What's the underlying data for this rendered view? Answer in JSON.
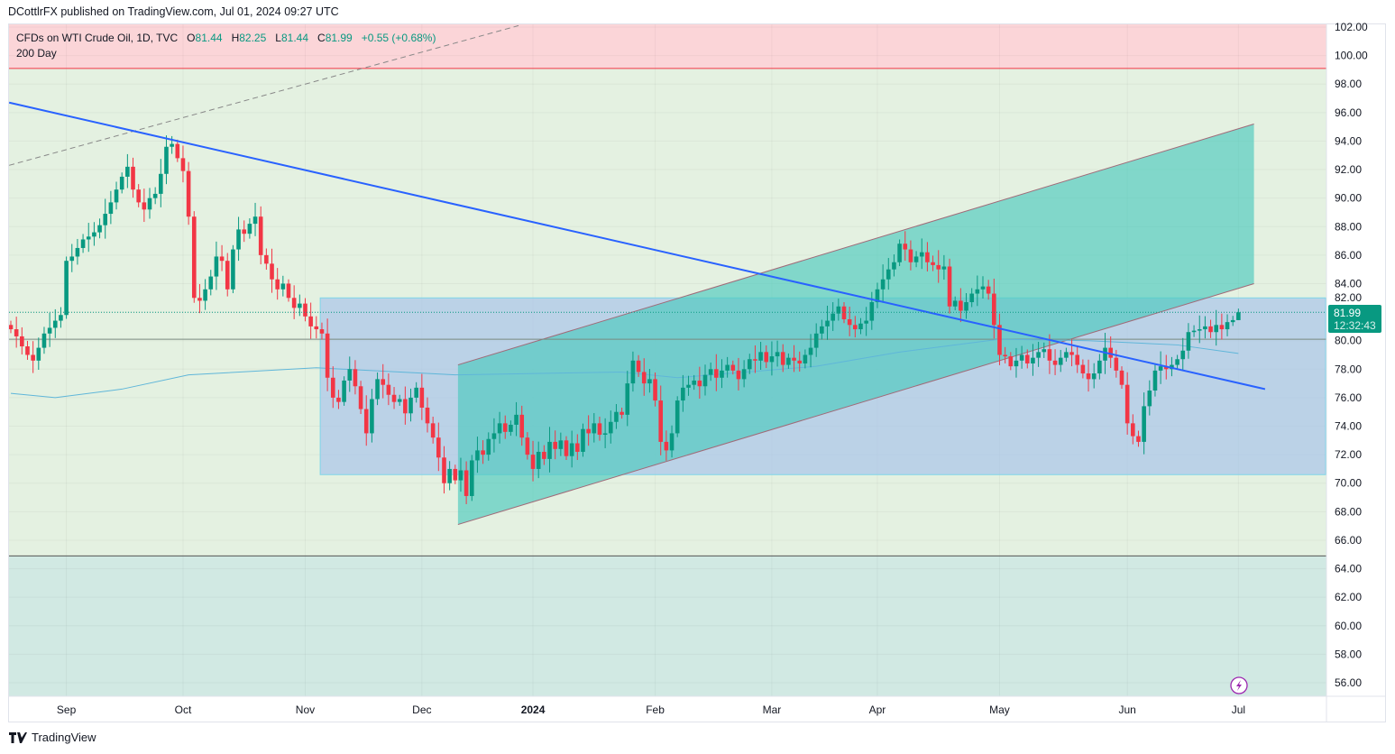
{
  "publisher_line": "DCottlrFX published on TradingView.com, Jul 01, 2024 09:27 UTC",
  "legend": {
    "symbol": "CFDs on WTI Crude Oil, 1D, TVC",
    "open_label": "O",
    "open": "81.44",
    "high_label": "H",
    "high": "82.25",
    "low_label": "L",
    "low": "81.44",
    "close_label": "C",
    "close": "81.99",
    "change": "+0.55 (+0.68%)",
    "indicator": "200 Day"
  },
  "price_tag": {
    "price": "81.99",
    "countdown": "12:32:43"
  },
  "footer": {
    "brand": "TradingView"
  },
  "colors": {
    "up": "#089981",
    "down": "#f23645",
    "ma": "#5fb6d9",
    "trendline": "#2962ff",
    "channel_fill": "#4cc9bd",
    "box_fill": "#a9c4ea",
    "pink_zone": "#fbd5d8",
    "green_zone": "#e4f1e1",
    "teal_zone": "#d1e9e3"
  },
  "chart_data": {
    "type": "candlestick",
    "title": "CFDs on WTI Crude Oil, 1D, TVC",
    "ylim": [
      55,
      103
    ],
    "y_ticks": [
      "102.00",
      "100.00",
      "98.00",
      "96.00",
      "94.00",
      "92.00",
      "90.00",
      "88.00",
      "86.00",
      "84.00",
      "82.00",
      "80.00",
      "78.00",
      "76.00",
      "74.00",
      "72.00",
      "70.00",
      "68.00",
      "66.00",
      "64.00",
      "62.00",
      "60.00",
      "58.00",
      "56.00"
    ],
    "x_ticks": [
      {
        "label": "Sep",
        "bar": 10
      },
      {
        "label": "Oct",
        "bar": 31
      },
      {
        "label": "Nov",
        "bar": 53
      },
      {
        "label": "Dec",
        "bar": 74
      },
      {
        "label": "2024",
        "bar": 94,
        "bold": true
      },
      {
        "label": "Feb",
        "bar": 116
      },
      {
        "label": "Mar",
        "bar": 137
      },
      {
        "label": "Apr",
        "bar": 156
      },
      {
        "label": "May",
        "bar": 178
      },
      {
        "label": "Jun",
        "bar": 201
      },
      {
        "label": "Jul",
        "bar": 221
      }
    ],
    "closes": [
      80.8,
      80.3,
      79.6,
      79.0,
      78.6,
      79.5,
      80.5,
      80.9,
      81.4,
      81.8,
      85.6,
      85.9,
      86.5,
      87.1,
      87.3,
      87.6,
      88.1,
      88.9,
      89.7,
      90.6,
      91.5,
      92.2,
      90.6,
      89.7,
      89.2,
      90.0,
      90.3,
      91.7,
      93.6,
      93.8,
      92.8,
      91.9,
      88.7,
      83.0,
      82.8,
      83.6,
      84.5,
      85.9,
      85.6,
      83.6,
      86.4,
      87.8,
      87.5,
      88.2,
      88.7,
      86.0,
      85.4,
      84.3,
      83.6,
      84.0,
      83.0,
      82.3,
      82.6,
      81.7,
      81.0,
      80.8,
      80.5,
      77.4,
      76.0,
      75.7,
      77.2,
      78.0,
      76.8,
      75.2,
      73.5,
      75.9,
      77.3,
      76.9,
      76.2,
      75.7,
      75.9,
      74.9,
      76.0,
      76.7,
      75.3,
      74.2,
      73.2,
      71.8,
      70.0,
      71.0,
      70.2,
      70.9,
      69.1,
      71.6,
      72.3,
      72.0,
      73.1,
      73.5,
      74.2,
      73.6,
      74.1,
      74.8,
      73.2,
      72.0,
      71.0,
      72.2,
      71.7,
      72.9,
      72.4,
      73.0,
      71.9,
      72.8,
      72.2,
      73.8,
      73.5,
      74.2,
      73.4,
      73.5,
      74.3,
      75.0,
      74.8,
      77.0,
      78.6,
      77.8,
      77.0,
      77.3,
      75.8,
      72.9,
      72.3,
      73.5,
      75.8,
      76.7,
      76.9,
      77.2,
      76.8,
      77.6,
      78.0,
      77.4,
      77.9,
      78.3,
      77.9,
      77.3,
      78.0,
      78.7,
      78.6,
      79.2,
      78.5,
      78.9,
      79.2,
      78.3,
      78.8,
      78.6,
      78.4,
      79.0,
      79.5,
      80.5,
      81.0,
      81.4,
      81.9,
      82.4,
      81.5,
      81.1,
      80.8,
      81.2,
      81.4,
      82.7,
      83.6,
      84.3,
      85.0,
      85.5,
      86.8,
      86.4,
      85.5,
      85.9,
      86.2,
      85.5,
      85.3,
      85.0,
      85.2,
      82.4,
      82.8,
      82.1,
      82.7,
      83.3,
      83.6,
      83.8,
      83.3,
      81.1,
      79.0,
      78.9,
      78.2,
      78.6,
      79.0,
      78.4,
      78.8,
      79.2,
      79.4,
      78.6,
      78.3,
      78.8,
      79.2,
      79.0,
      78.3,
      77.7,
      77.3,
      77.7,
      78.6,
      79.5,
      78.8,
      77.9,
      76.9,
      74.2,
      73.3,
      72.9,
      75.4,
      76.5,
      77.9,
      78.2,
      78.0,
      78.3,
      78.7,
      79.3,
      80.6,
      80.7,
      80.8,
      81.0,
      80.6,
      81.1,
      80.8,
      81.3,
      81.44,
      81.99
    ],
    "last_ohlc": {
      "open": 81.44,
      "high": 82.25,
      "low": 81.44,
      "close": 81.99
    },
    "ma200": [
      [
        0,
        76.3
      ],
      [
        8,
        76.0
      ],
      [
        20,
        76.6
      ],
      [
        32,
        77.6
      ],
      [
        55,
        78.1
      ],
      [
        80,
        77.6
      ],
      [
        110,
        77.8
      ],
      [
        120,
        77.4
      ],
      [
        145,
        78.2
      ],
      [
        160,
        79.2
      ],
      [
        178,
        80.1
      ],
      [
        194,
        80.0
      ],
      [
        210,
        79.7
      ],
      [
        221,
        79.1
      ]
    ],
    "drawings": {
      "resistance_zone_floor": 99.1,
      "support_zone_ceiling": 64.9,
      "horizontal_level": 80.1,
      "downtrend_line": [
        [
          -0.3,
          96.7
        ],
        [
          225.8,
          76.6
        ]
      ],
      "dashed_line": [
        [
          -0.3,
          92.3
        ],
        [
          91.4,
          102.1
        ]
      ],
      "range_box": {
        "from_bar": 55.7,
        "to_bar": 236.7,
        "top": 83.0,
        "bottom": 70.6
      },
      "channel": {
        "from_bar": 80.5,
        "to_bar": 223.8,
        "lower": [
          67.1,
          84.0
        ],
        "upper": [
          78.3,
          95.2
        ]
      }
    }
  }
}
